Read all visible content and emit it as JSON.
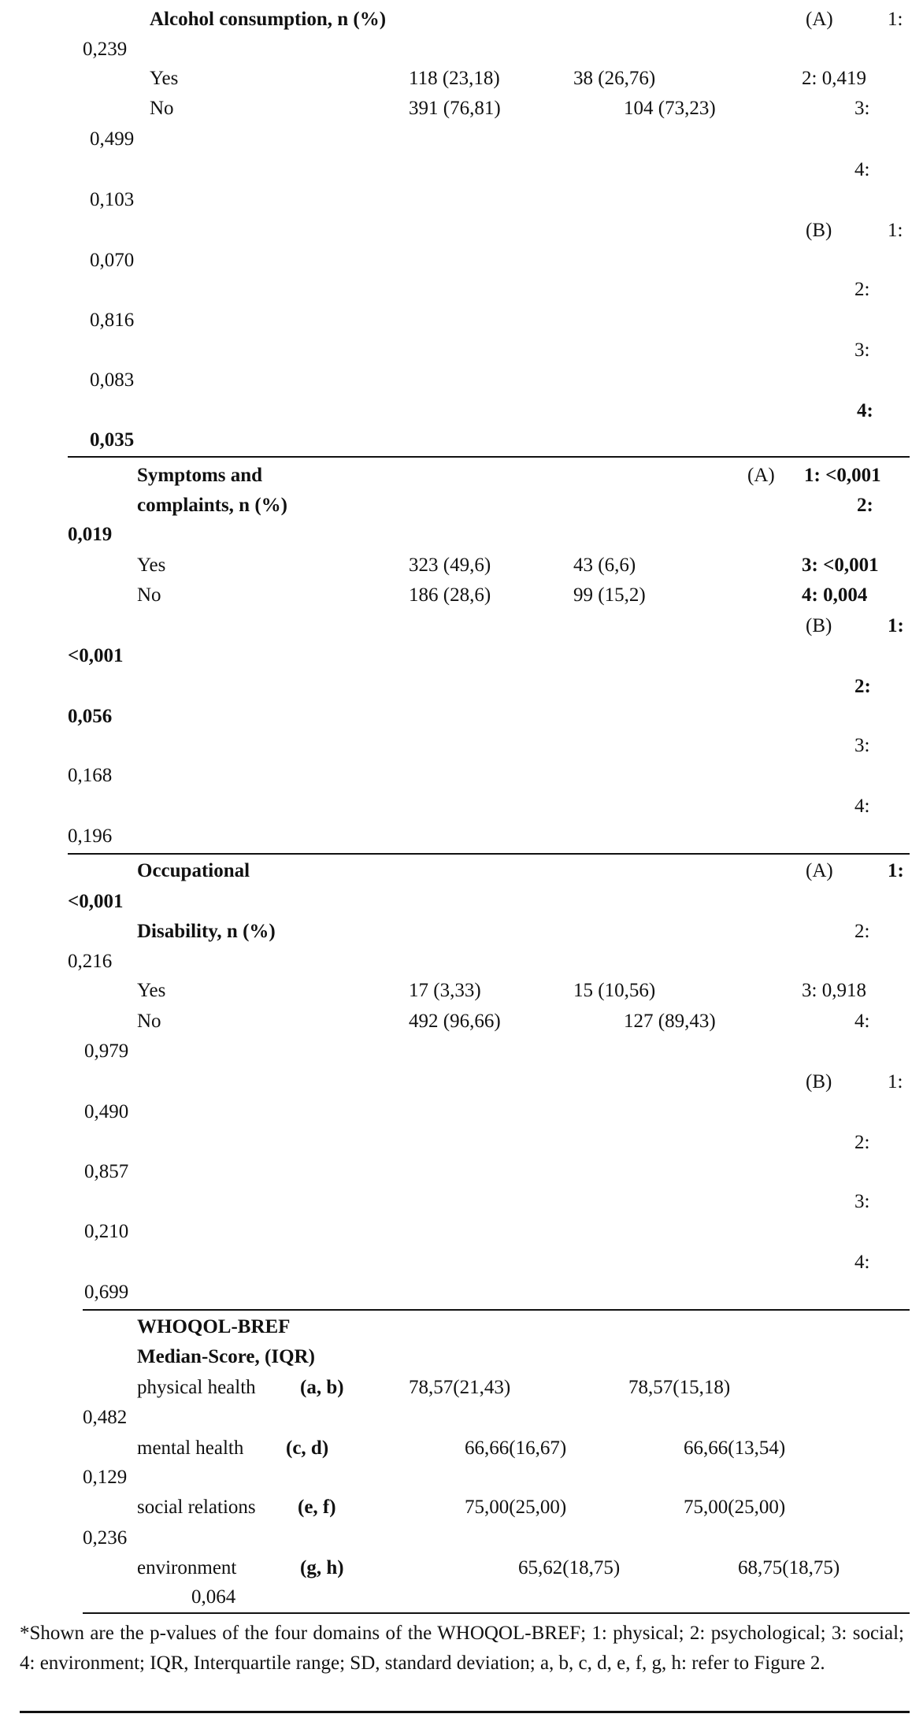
{
  "table": {
    "sections": [
      {
        "title": [
          "Alcohol consumption, n (%)"
        ],
        "rows": [
          {
            "label": "Yes",
            "values": [
              "118 (23,18)",
              "38 (26,76)"
            ]
          },
          {
            "label": "No",
            "values": [
              "391 (76,81)",
              "104 (73,23)"
            ]
          }
        ],
        "p_values": [
          "(A)",
          "1:",
          "0,239",
          "2: 0,419",
          "3:",
          "0,499",
          "4:",
          "0,103",
          "(B)",
          "1:",
          "0,070",
          "2:",
          "0,816",
          "3:",
          "0,083",
          "4:",
          "0,035"
        ]
      },
      {
        "title": [
          "Symptoms and",
          "complaints, n (%)"
        ],
        "rows": [
          {
            "label": "Yes",
            "values": [
              "323 (49,6)",
              "43 (6,6)"
            ]
          },
          {
            "label": "No",
            "values": [
              "186 (28,6)",
              "99 (15,2)"
            ]
          }
        ],
        "p_values": [
          "(A)",
          "1: <0,001",
          "2:",
          "0,019",
          "3: <0,001",
          "4: 0,004",
          "(B)",
          "1:",
          "<0,001",
          "2:",
          "0,056",
          "3:",
          "0,168",
          "4:",
          "0,196"
        ]
      },
      {
        "title": [
          "Occupational",
          "Disability, n (%)"
        ],
        "rows": [
          {
            "label": "Yes",
            "values": [
              "17 (3,33)",
              "15 (10,56)"
            ]
          },
          {
            "label": "No",
            "values": [
              "492 (96,66)",
              "127 (89,43)"
            ]
          }
        ],
        "p_values": [
          "(A)",
          "1:",
          "<0,001",
          "2:",
          "0,216",
          "3: 0,918",
          "4:",
          "0,979",
          "(B)",
          "1:",
          "0,490",
          "2:",
          "0,857",
          "3:",
          "0,210",
          "4:",
          "0,699"
        ]
      },
      {
        "title": [
          "WHOQOL-BREF",
          "Median-Score, (IQR)"
        ],
        "rows": [
          {
            "label": "physical health",
            "code": "(a, b)",
            "values": [
              "78,57(21,43)",
              "78,57(15,18)"
            ]
          },
          {
            "label": "mental health",
            "code": "(c, d)",
            "values": [
              "66,66(16,67)",
              "66,66(13,54)"
            ]
          },
          {
            "label": "social relations",
            "code": "(e, f)",
            "values": [
              "75,00(25,00)",
              "75,00(25,00)"
            ]
          },
          {
            "label": "environment",
            "code": "(g, h)",
            "values": [
              "65,62(18,75)",
              "68,75(18,75)"
            ]
          }
        ],
        "p_values": [
          "0,482",
          "0,129",
          "0,236",
          "0,064"
        ]
      }
    ]
  },
  "footnote": "*Shown are the p-values of the four domains of the WHOQOL-BREF; 1: physical; 2: psychological; 3: social; 4: environment; IQR, Interquartile range; SD, standard deviation; a, b, c, d, e, f, g, h: refer to Figure 2."
}
